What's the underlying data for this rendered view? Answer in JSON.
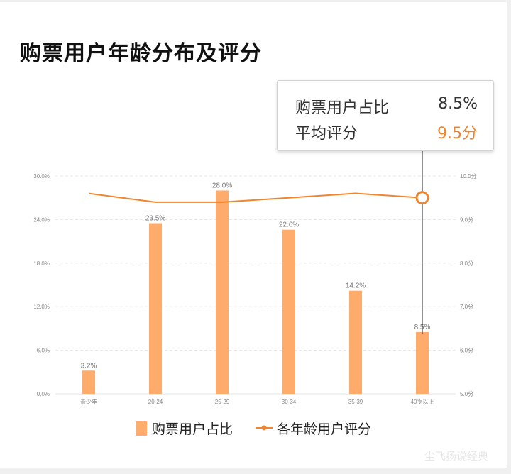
{
  "title": "购票用户年龄分布及评分",
  "tooltip": {
    "share_label": "购票用户占比",
    "share_value": "8.5%",
    "rating_label": "平均评分",
    "rating_value": "9.5分"
  },
  "legend": {
    "bar_label": "购票用户占比",
    "line_label": "各年龄用户评分"
  },
  "colors": {
    "bar": "#ffab6b",
    "line": "#f0852d",
    "grid": "#e6e6e6"
  },
  "watermark": "尘飞扬说经典",
  "chart_data": {
    "type": "bar",
    "title": "购票用户年龄分布及评分",
    "categories": [
      "青少年",
      "20-24",
      "25-29",
      "30-34",
      "35-39",
      "40岁以上"
    ],
    "series": [
      {
        "name": "购票用户占比",
        "type": "bar",
        "axis": "left",
        "values": [
          3.2,
          23.5,
          28.0,
          22.6,
          14.2,
          8.5
        ],
        "data_labels": [
          "3.2%",
          "23.5%",
          "28.0%",
          "22.6%",
          "14.2%",
          "8.5%"
        ]
      },
      {
        "name": "各年龄用户评分",
        "type": "line",
        "axis": "right",
        "values": [
          9.6,
          9.4,
          9.4,
          9.5,
          9.6,
          9.5
        ]
      }
    ],
    "left_axis": {
      "ylim": [
        0,
        30
      ],
      "ticks": [
        0,
        6,
        12,
        18,
        24,
        30
      ],
      "tick_labels": [
        "0.0%",
        "6.0%",
        "12.0%",
        "18.0%",
        "24.0%",
        "30.0%"
      ]
    },
    "right_axis": {
      "ylim": [
        5,
        10
      ],
      "ticks": [
        5,
        6,
        7,
        8,
        9,
        10
      ],
      "tick_labels": [
        "5.0分",
        "6.0分",
        "7.0分",
        "8.0分",
        "9.0分",
        "10.0分"
      ]
    },
    "grid": true,
    "legend_position": "bottom",
    "highlighted_category": "40岁以上"
  }
}
